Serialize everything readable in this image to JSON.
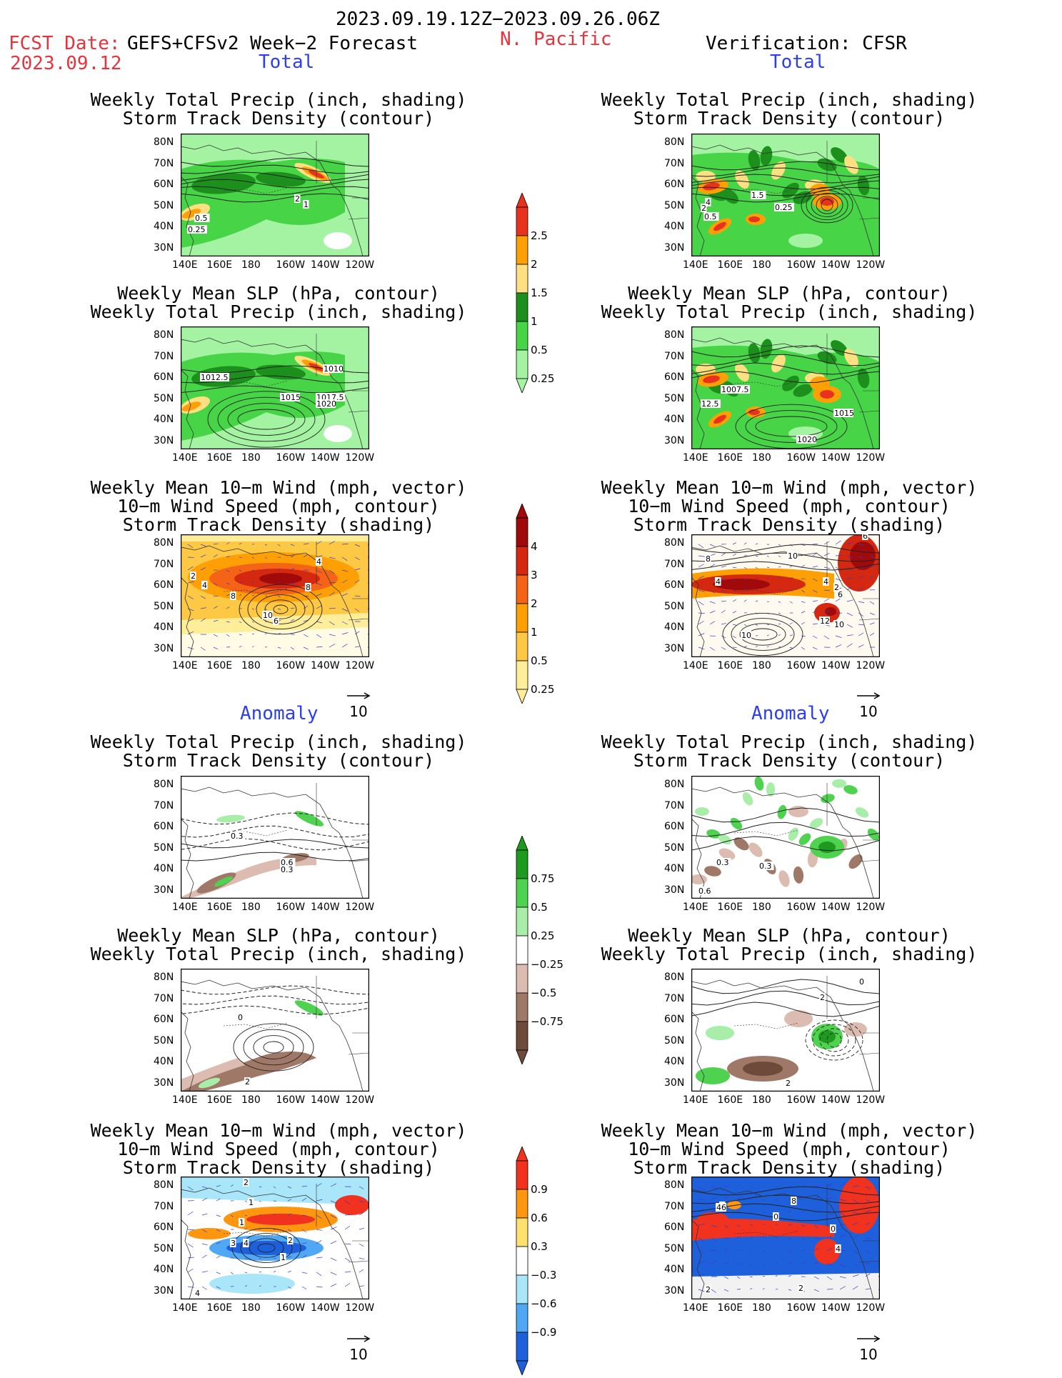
{
  "header": {
    "period": "2023.09.19.12Z−2023.09.26.06Z",
    "fcst_date_label": "FCST Date:",
    "model": "GEFS+CFSv2 Week−2 Forecast",
    "fcst_date": "2023.09.12",
    "region": "N. Pacific",
    "verification": "Verification: CFSR"
  },
  "sections": {
    "total": "Total",
    "anomaly": "Anomaly"
  },
  "panel_titles": {
    "precip_track": "Weekly Total Precip (inch, shading)\nStorm Track Density (contour)",
    "slp_precip": "Weekly Mean SLP (hPa, contour)\nWeekly Total Precip (inch, shading)",
    "wind_track": "Weekly Mean 10−m Wind (mph, vector)\n10−m Wind Speed (mph, contour)\nStorm Track Density (shading)"
  },
  "axes": {
    "lat_labels": [
      "80N",
      "70N",
      "60N",
      "50N",
      "40N",
      "30N"
    ],
    "lon_labels": [
      "140E",
      "160E",
      "180",
      "160W",
      "140W",
      "120W"
    ]
  },
  "vector_ref": "10",
  "colorbars": {
    "precip_total": {
      "labels": [
        "2.5",
        "2",
        "1.5",
        "1",
        "0.5",
        "0.25"
      ],
      "colors": [
        "#e8321e",
        "#fea005",
        "#fee082",
        "#1d8f1d",
        "#47d447",
        "#a3f3a3"
      ]
    },
    "track_total": {
      "labels": [
        "4",
        "3",
        "2",
        "1",
        "0.5",
        "0.25"
      ],
      "colors": [
        "#a00a0a",
        "#d42810",
        "#f56416",
        "#fea005",
        "#fdc844",
        "#feee9a"
      ]
    },
    "precip_anom": {
      "labels": [
        "0.75",
        "0.5",
        "0.25",
        "−0.25",
        "−0.5",
        "−0.75"
      ],
      "colors": [
        "#1e9a1e",
        "#4fd24f",
        "#a8eda8",
        "#ffffff",
        "#dcbcb0",
        "#a07868",
        "#6e4a3a"
      ]
    },
    "track_anom": {
      "labels": [
        "0.9",
        "0.6",
        "0.3",
        "−0.3",
        "−0.6",
        "−0.9"
      ],
      "colors": [
        "#f0321e",
        "#fe9610",
        "#fee06e",
        "#ffffff",
        "#aae6fa",
        "#50a8f5",
        "#1e60dc"
      ]
    }
  },
  "panels": [
    {
      "id": "fc-total-precip",
      "labels": [
        "2",
        "1",
        "0.5",
        "0.25"
      ]
    },
    {
      "id": "fc-total-slp",
      "labels": [
        "1012.5",
        "1010",
        "1015",
        "1017.5",
        "1020"
      ]
    },
    {
      "id": "fc-total-wind",
      "labels": [
        "2",
        "4",
        "8",
        "8",
        "4",
        "10",
        "6"
      ]
    },
    {
      "id": "vf-total-precip",
      "labels": [
        "4",
        "2",
        "0.5",
        "1.5",
        "0.25"
      ]
    },
    {
      "id": "vf-total-slp",
      "labels": [
        "1007.5",
        "12.5",
        "1015",
        "1020"
      ]
    },
    {
      "id": "vf-total-wind",
      "labels": [
        "6",
        "8",
        "10",
        "4",
        "4",
        "2",
        "6",
        "12",
        "10",
        "10"
      ]
    },
    {
      "id": "fc-anom-precip",
      "labels": [
        "0.3",
        "0.6",
        "0.3"
      ]
    },
    {
      "id": "fc-anom-slp",
      "labels": [
        "0",
        "2"
      ]
    },
    {
      "id": "fc-anom-wind",
      "labels": [
        "2",
        "1",
        "1",
        "3",
        "4",
        "2",
        "1",
        "4"
      ]
    },
    {
      "id": "vf-anom-precip",
      "labels": [
        "0.3",
        "0.3",
        "0.6"
      ]
    },
    {
      "id": "vf-anom-slp",
      "labels": [
        "0",
        "2",
        "2"
      ]
    },
    {
      "id": "vf-anom-wind",
      "labels": [
        "8",
        "2",
        "46",
        "0",
        "0",
        "4",
        "2",
        "2"
      ]
    }
  ]
}
